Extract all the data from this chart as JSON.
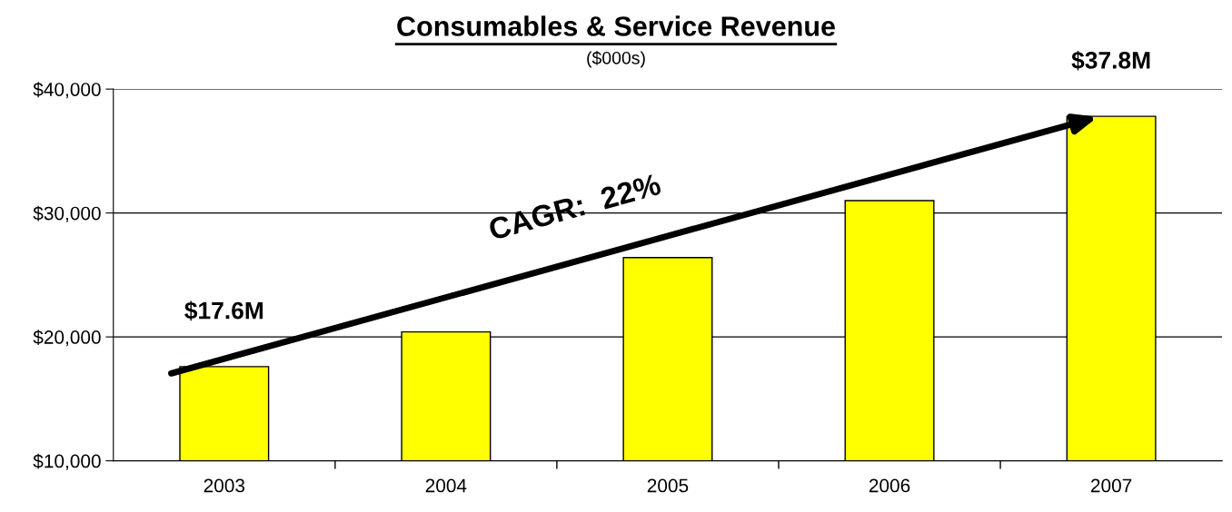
{
  "chart_data": {
    "type": "bar",
    "title": "Consumables & Service Revenue",
    "subtitle": "($000s)",
    "categories": [
      "2003",
      "2004",
      "2005",
      "2006",
      "2007"
    ],
    "values": [
      17600,
      20400,
      26400,
      31000,
      37800
    ],
    "color": "#ffff00",
    "annotations": [
      {
        "text": "$17.6M",
        "x": "2003",
        "y": 17600
      },
      {
        "text": "$37.8M",
        "x": "2007",
        "y": 37800
      },
      "CAGR:  22%"
    ],
    "ylim": [
      10000,
      40000
    ],
    "yticks": [
      {
        "value": 10000,
        "label": "$10,000"
      },
      {
        "value": 20000,
        "label": "$20,000"
      },
      {
        "value": 30000,
        "label": "$30,000"
      },
      {
        "value": 40000,
        "label": "$40,000"
      }
    ],
    "grid": "y"
  }
}
